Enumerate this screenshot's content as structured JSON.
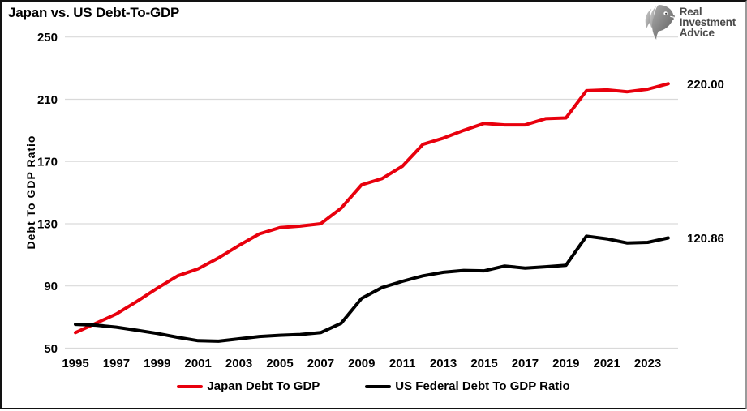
{
  "header": {
    "title": "Japan vs. US Debt-To-GDP",
    "logo": {
      "icon": "eagle-icon",
      "lines": [
        "Real",
        "Investment",
        "Advice"
      ]
    }
  },
  "chart_data": {
    "type": "line",
    "title": "Japan vs. US Debt-To-GDP",
    "xlabel": "",
    "ylabel": "Debt To GDP Ratio",
    "ylim": [
      50,
      250
    ],
    "yticks": [
      50,
      90,
      130,
      170,
      210,
      250
    ],
    "xticks": [
      1995,
      1997,
      1999,
      2001,
      2003,
      2005,
      2007,
      2009,
      2011,
      2013,
      2015,
      2017,
      2019,
      2021,
      2023
    ],
    "grid": "horizontal-only",
    "legend_position": "bottom-center",
    "x": [
      1995,
      1996,
      1997,
      1998,
      1999,
      2000,
      2001,
      2002,
      2003,
      2004,
      2005,
      2006,
      2007,
      2008,
      2009,
      2010,
      2011,
      2012,
      2013,
      2014,
      2015,
      2016,
      2017,
      2018,
      2019,
      2020,
      2021,
      2022,
      2023,
      2024
    ],
    "series": [
      {
        "name": "Japan Debt To GDP",
        "color": "#e8000d",
        "end_label": "220.00",
        "values": [
          60,
          66,
          72,
          80,
          88.5,
          96.5,
          101,
          108,
          116,
          123.5,
          127.5,
          128.5,
          130,
          140,
          155,
          159,
          167,
          181,
          185,
          190,
          194.5,
          193.5,
          193.5,
          197.5,
          198,
          215.5,
          216,
          214.8,
          216.5,
          220
        ]
      },
      {
        "name": "US Federal Debt To GDP Ratio",
        "color": "#000000",
        "end_label": "120.86",
        "values": [
          65.3,
          64.8,
          63.5,
          61.5,
          59.5,
          57,
          54.8,
          54.5,
          56,
          57.5,
          58.3,
          58.8,
          60,
          66,
          82,
          89,
          93,
          96.5,
          98.8,
          100,
          99.7,
          102.8,
          101.5,
          102.3,
          103.3,
          122,
          120.3,
          117.6,
          118,
          120.86
        ]
      }
    ]
  }
}
